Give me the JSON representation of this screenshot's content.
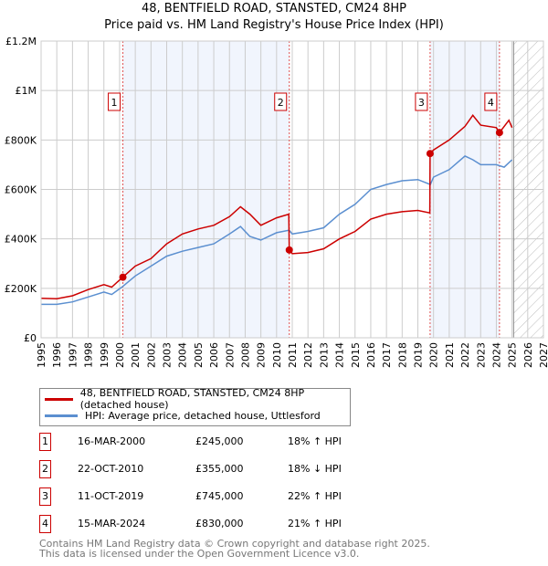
{
  "header": {
    "title": "48, BENTFIELD ROAD, STANSTED, CM24 8HP",
    "subtitle": "Price paid vs. HM Land Registry's House Price Index (HPI)"
  },
  "chart_data": {
    "type": "line",
    "title": "48, BENTFIELD ROAD, STANSTED, CM24 8HP",
    "subtitle": "Price paid vs. HM Land Registry's House Price Index (HPI)",
    "xlim": [
      1995,
      2027
    ],
    "ylim": [
      0,
      1200000
    ],
    "x_ticks": [
      "1995",
      "1996",
      "1997",
      "1998",
      "1999",
      "2000",
      "2001",
      "2002",
      "2003",
      "2004",
      "2005",
      "2006",
      "2007",
      "2008",
      "2009",
      "2010",
      "2011",
      "2012",
      "2013",
      "2014",
      "2015",
      "2016",
      "2017",
      "2018",
      "2019",
      "2020",
      "2021",
      "2022",
      "2023",
      "2024",
      "2025",
      "2026",
      "2027"
    ],
    "y_ticks": [
      {
        "v": 0,
        "label": "£0"
      },
      {
        "v": 200000,
        "label": "£200K"
      },
      {
        "v": 400000,
        "label": "£400K"
      },
      {
        "v": 600000,
        "label": "£600K"
      },
      {
        "v": 800000,
        "label": "£800K"
      },
      {
        "v": 1000000,
        "label": "£1M"
      },
      {
        "v": 1200000,
        "label": "£1.2M"
      }
    ],
    "grid": true,
    "shaded_periods": [
      [
        2000.21,
        2010.81
      ],
      [
        2019.78,
        2024.2
      ]
    ],
    "forecast_hatch_from": 2025.1,
    "series": [
      {
        "name": "48, BENTFIELD ROAD, STANSTED, CM24 8HP (detached house)",
        "color": "#cc0000",
        "x": [
          1995,
          1996,
          1997,
          1998,
          1999,
          1999.5,
          2000.21,
          2001,
          2002,
          2003,
          2004,
          2005,
          2006,
          2007,
          2007.7,
          2008.3,
          2009,
          2010,
          2010.78,
          2010.81,
          2011,
          2012,
          2013,
          2014,
          2015,
          2016,
          2017,
          2018,
          2019,
          2019.76,
          2019.78,
          2020,
          2021,
          2022,
          2022.5,
          2023,
          2024,
          2024.2,
          2024.8,
          2025.0
        ],
        "y": [
          160000,
          158000,
          170000,
          195000,
          215000,
          205000,
          245000,
          290000,
          320000,
          380000,
          420000,
          440000,
          455000,
          490000,
          530000,
          500000,
          455000,
          485000,
          500000,
          355000,
          340000,
          345000,
          360000,
          400000,
          430000,
          480000,
          500000,
          510000,
          515000,
          505000,
          745000,
          760000,
          800000,
          855000,
          900000,
          860000,
          850000,
          830000,
          880000,
          850000
        ]
      },
      {
        "name": "HPI: Average price, detached house, Uttlesford",
        "color": "#5b8fd0",
        "x": [
          1995,
          1996,
          1997,
          1998,
          1999,
          1999.5,
          2000.21,
          2001,
          2002,
          2003,
          2004,
          2005,
          2006,
          2007,
          2007.7,
          2008.3,
          2009,
          2010,
          2010.8,
          2011,
          2012,
          2013,
          2014,
          2015,
          2016,
          2017,
          2018,
          2019,
          2019.8,
          2020,
          2021,
          2022,
          2022.5,
          2023,
          2024,
          2024.5,
          2025.0
        ],
        "y": [
          135000,
          135000,
          145000,
          165000,
          185000,
          175000,
          208000,
          250000,
          290000,
          330000,
          350000,
          365000,
          380000,
          420000,
          450000,
          410000,
          395000,
          425000,
          435000,
          420000,
          430000,
          445000,
          500000,
          540000,
          600000,
          620000,
          635000,
          640000,
          620000,
          650000,
          680000,
          735000,
          720000,
          700000,
          700000,
          690000,
          720000
        ]
      }
    ],
    "markers": [
      {
        "label": "1",
        "x": 2000.21,
        "y": 245000
      },
      {
        "label": "2",
        "x": 2010.81,
        "y": 355000
      },
      {
        "label": "3",
        "x": 2019.78,
        "y": 745000
      },
      {
        "label": "4",
        "x": 2024.2,
        "y": 830000
      }
    ]
  },
  "legend": {
    "items": [
      {
        "label": "48, BENTFIELD ROAD, STANSTED, CM24 8HP (detached house)",
        "color": "#cc0000"
      },
      {
        "label": "HPI: Average price, detached house, Uttlesford",
        "color": "#5b8fd0"
      }
    ]
  },
  "transactions": [
    {
      "num": "1",
      "date": "16-MAR-2000",
      "price": "£245,000",
      "hpi": "18% ↑ HPI"
    },
    {
      "num": "2",
      "date": "22-OCT-2010",
      "price": "£355,000",
      "hpi": "18% ↓ HPI"
    },
    {
      "num": "3",
      "date": "11-OCT-2019",
      "price": "£745,000",
      "hpi": "22% ↑ HPI"
    },
    {
      "num": "4",
      "date": "15-MAR-2024",
      "price": "£830,000",
      "hpi": "21% ↑ HPI"
    }
  ],
  "footer": {
    "line1": "Contains HM Land Registry data © Crown copyright and database right 2025.",
    "line2": "This data is licensed under the Open Government Licence v3.0."
  }
}
